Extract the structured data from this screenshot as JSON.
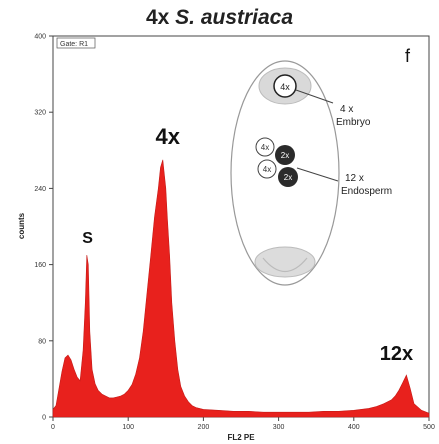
{
  "title": {
    "prefix": "4x",
    "species": "S. austriaca"
  },
  "panel_letter": "f",
  "gate_label": "Gate: R1",
  "chart_data": {
    "type": "area",
    "xlabel": "FL2 PE",
    "ylabel": "counts",
    "xlim": [
      0,
      500
    ],
    "ylim": [
      0,
      400
    ],
    "x_ticks": [
      "0",
      "100",
      "200",
      "300",
      "400",
      "500"
    ],
    "y_ticks": [
      "0",
      "80",
      "160",
      "240",
      "320",
      "400"
    ],
    "peaks": [
      {
        "label": "S",
        "x": 46,
        "y": 170
      },
      {
        "label": "4x",
        "x": 150,
        "y": 270
      },
      {
        "label": "12x",
        "x": 462,
        "y": 45
      }
    ],
    "series": [
      {
        "color": "#e8211d",
        "x": [
          0,
          4,
          8,
          12,
          16,
          20,
          24,
          28,
          32,
          36,
          40,
          43,
          45,
          47,
          49,
          52,
          56,
          60,
          65,
          70,
          75,
          80,
          85,
          90,
          95,
          100,
          105,
          110,
          115,
          120,
          125,
          130,
          135,
          140,
          143,
          146,
          148,
          150,
          152,
          155,
          158,
          162,
          166,
          170,
          175,
          180,
          185,
          190,
          200,
          220,
          240,
          260,
          280,
          300,
          320,
          340,
          360,
          380,
          400,
          420,
          430,
          440,
          450,
          455,
          460,
          465,
          470,
          475,
          480,
          490,
          500
        ],
        "y": [
          8,
          12,
          30,
          48,
          62,
          65,
          60,
          50,
          42,
          38,
          70,
          120,
          170,
          160,
          90,
          50,
          35,
          28,
          24,
          22,
          20,
          20,
          21,
          22,
          24,
          28,
          34,
          45,
          62,
          90,
          130,
          170,
          210,
          240,
          262,
          270,
          255,
          240,
          210,
          170,
          120,
          80,
          50,
          32,
          22,
          16,
          12,
          10,
          8,
          7,
          6,
          6,
          5,
          5,
          5,
          5,
          6,
          6,
          7,
          9,
          11,
          14,
          18,
          22,
          28,
          36,
          44,
          30,
          14,
          7,
          4
        ]
      }
    ]
  },
  "inset": {
    "embryo_ploidy": "4x",
    "endosperm_ploidy_light": "4x",
    "endosperm_ploidy_dark": "2x",
    "embryo_label": "4 x\nEmbryo",
    "endosperm_label": "12 x\nEndosperm"
  }
}
